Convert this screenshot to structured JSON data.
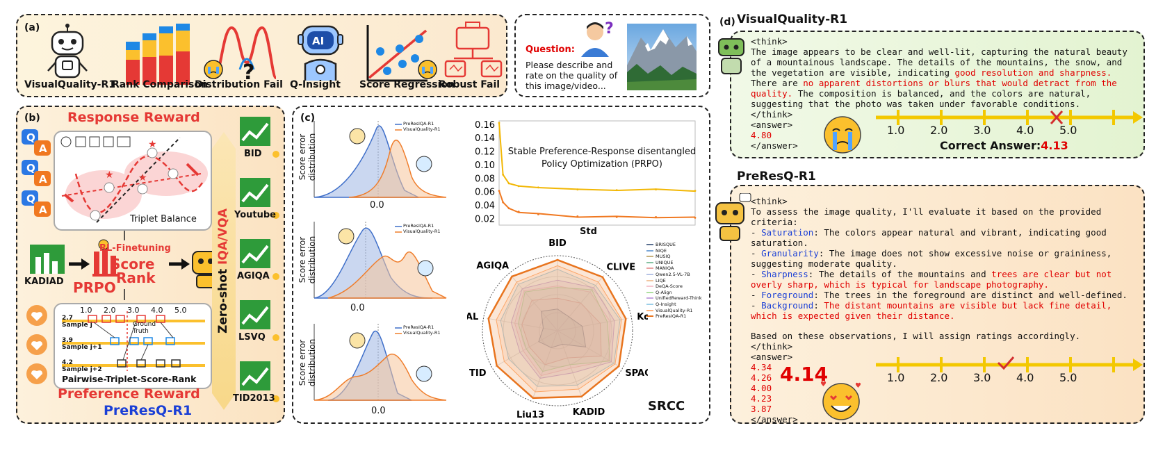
{
  "panel_a": {
    "label": "(a)",
    "items": [
      "VisualQuality-R1",
      "Rank Comparison",
      "Distribution Fail",
      "Q-Insight",
      "Score Regression",
      "Robust Fail"
    ]
  },
  "question": {
    "label": "Question:",
    "text_lines": [
      "Please describe and",
      "rate on the quality of",
      "this image/video..."
    ]
  },
  "panel_b": {
    "label": "(b)",
    "response_reward": "Response Reward",
    "triplet_balance": "Triplet Balance",
    "rl_finetuning": "RL-Finetuning",
    "score": "Score",
    "rank": "Rank",
    "prpo": "PRPO",
    "kadiad": "KADIAD",
    "preference_reward": "Preference Reward",
    "model": "PreResQ-R1",
    "pairwise": "Pairwise-Triplet-Score-Rank",
    "ground_truth": [
      "Ground",
      "Truth"
    ],
    "ticks": [
      "1.0",
      "2.0",
      "3.0",
      "4.0",
      "5.0"
    ],
    "samples": [
      {
        "value": "2.7",
        "name": "Sample j"
      },
      {
        "value": "3.9",
        "name": "Sample j+1"
      },
      {
        "value": "4.2",
        "name": "Sample j+2"
      }
    ],
    "zero_shot_prefix": "Zero-shot ",
    "zero_shot_task": "IQA/VQA",
    "datasets": [
      "BID",
      "Youtube",
      "AGIQA",
      "LSVQ",
      "TID2013"
    ],
    "qa_letters": [
      "Q",
      "A",
      "Q",
      "A",
      "Q",
      "A"
    ]
  },
  "panel_c": {
    "label": "(c)",
    "dist_ylabel_1": "Score error",
    "dist_ylabel_2": "distribution",
    "dist_xtick": "0.0",
    "legend": [
      "PreResIQA-R1",
      "VisualQuality-R1"
    ],
    "line_title": [
      "Stable Preference-Response disentangled",
      "Policy Optimization (PRPO)"
    ],
    "line_xlabel": "Std",
    "radar_title": "SRCC",
    "radar_axes": [
      "BID",
      "CLIVE",
      "KonIQ",
      "SPAQ",
      "KADID",
      "Liu13",
      "TID",
      "PIPAL",
      "AGIQA"
    ],
    "radar_legend": [
      "BRISQUE",
      "NIQE",
      "MUSIQ",
      "UNIQUE",
      "MANIQA",
      "Qwen2.5-VL-7B",
      "LIQE",
      "DeQA-Score",
      "Q-Align",
      "UnifiedReward-Think",
      "Q-Insight",
      "VisualQuality-R1",
      "PreResIQA-R1"
    ]
  },
  "chart_data": [
    {
      "type": "line",
      "title": "Stable Preference-Response disentangled Policy Optimization (PRPO)",
      "xlabel": "Std",
      "ylabel": "",
      "ylim": [
        0.01,
        0.165
      ],
      "yticks": [
        "0.16",
        "0.14",
        "0.12",
        "0.10",
        "0.08",
        "0.06",
        "0.04",
        "0.02"
      ],
      "x": [
        0,
        2,
        5,
        10,
        20,
        40,
        60,
        80,
        100
      ],
      "series": [
        {
          "color": "#f2b705",
          "values": [
            0.162,
            0.085,
            0.072,
            0.068,
            0.066,
            0.063,
            0.062,
            0.063,
            0.061
          ]
        },
        {
          "color": "#f07820",
          "values": [
            0.061,
            0.044,
            0.035,
            0.03,
            0.026,
            0.023,
            0.022,
            0.022,
            0.021
          ]
        }
      ]
    },
    {
      "type": "radar",
      "title": "SRCC",
      "axes": [
        "BID",
        "CLIVE",
        "KonIQ",
        "SPAQ",
        "KADID",
        "Liu13",
        "TID",
        "PIPAL",
        "AGIQA"
      ],
      "series": [
        {
          "name": "PreResIQA-R1",
          "color": "#e8741e",
          "values": [
            0.98,
            0.97,
            0.96,
            0.98,
            0.97,
            0.99,
            0.97,
            0.97,
            0.98
          ]
        },
        {
          "name": "VisualQuality-R1",
          "color": "#ffb27a",
          "values": [
            0.9,
            0.88,
            0.9,
            0.92,
            0.86,
            0.9,
            0.85,
            0.86,
            0.88
          ]
        },
        {
          "name": "Q-Insight",
          "color": "#9ccfe8",
          "values": [
            0.85,
            0.82,
            0.88,
            0.9,
            0.8,
            0.82,
            0.78,
            0.8,
            0.84
          ]
        },
        {
          "name": "UnifiedReward-Think",
          "color": "#c6a6e0",
          "values": [
            0.7,
            0.78,
            0.8,
            0.86,
            0.62,
            0.7,
            0.6,
            0.65,
            0.76
          ]
        },
        {
          "name": "Q-Align",
          "color": "#aee0a0",
          "values": [
            0.6,
            0.74,
            0.7,
            0.84,
            0.5,
            0.6,
            0.5,
            0.55,
            0.7
          ]
        },
        {
          "name": "DeQA-Score",
          "color": "#f6c6d0",
          "values": [
            0.62,
            0.7,
            0.74,
            0.82,
            0.55,
            0.66,
            0.55,
            0.6,
            0.72
          ]
        },
        {
          "name": "MANIQA",
          "color": "#e9a3a3",
          "values": [
            0.45,
            0.5,
            0.6,
            0.7,
            0.4,
            0.5,
            0.45,
            0.5,
            0.55
          ]
        },
        {
          "name": "BRISQUE",
          "color": "#5a6f90",
          "values": [
            0.3,
            0.25,
            0.35,
            0.45,
            0.2,
            0.25,
            0.3,
            0.2,
            0.35
          ]
        }
      ]
    }
  ],
  "panel_d": {
    "label": "(d)",
    "model1": "VisualQuality-R1",
    "vq_think_open": "<think>",
    "vq_body": [
      {
        "t": "The image appears to be clear and well-lit, capturing the natural beauty of a mountainous landscape. The details of the mountains, the snow, and the vegetation are visible, indicating ",
        "c": ""
      },
      {
        "t": "good resolution and sharpness.",
        "c": "red"
      },
      {
        "t": " There are ",
        "c": ""
      },
      {
        "t": "no apparent distortions or blurs that would detract from the quality.",
        "c": "red"
      },
      {
        "t": " The composition is balanced, and the colors are natural, suggesting that the photo was taken under favorable conditions.",
        "c": ""
      }
    ],
    "vq_think_close": "</think>",
    "vq_answer_open": "<answer>",
    "vq_answer": "4.80",
    "vq_answer_close": "</answer>",
    "correct_label": "Correct Answer:",
    "correct_value": "4.13",
    "ticks": [
      "1.0",
      "2.0",
      "3.0",
      "4.0",
      "5.0"
    ],
    "model2": "PreResQ-R1",
    "pr_think_open": "<think>",
    "pr_intro": "To assess the image quality, I'll evaluate it based on the provided criteria:",
    "pr_items": [
      {
        "k": "Saturation",
        "v": ": The colors appear natural and vibrant, indicating good saturation.",
        "r": ""
      },
      {
        "k": "Granularity",
        "v": ": The image does not show excessive noise or graininess, suggesting moderate quality.",
        "r": ""
      },
      {
        "k": "Sharpness",
        "v": ": The details of the mountains and ",
        "r": "trees are clear but not overly sharp, which is typical for landscape photography."
      },
      {
        "k": "Foreground",
        "v": ": The trees in the foreground are distinct and well-defined.",
        "r": ""
      },
      {
        "k": "Background",
        "v": ": ",
        "r": "The distant mountains are visible but lack fine detail, which is expected given their distance."
      }
    ],
    "pr_conclusion": "Based on these observations, I will assign ratings accordingly.",
    "pr_think_close": "</think>",
    "pr_answer_open": "<answer>",
    "pr_answers": [
      "4.34",
      "4.26",
      "4.00",
      "4.23",
      "3.87"
    ],
    "pr_big": "4.14",
    "pr_answer_close": "</answer>"
  }
}
